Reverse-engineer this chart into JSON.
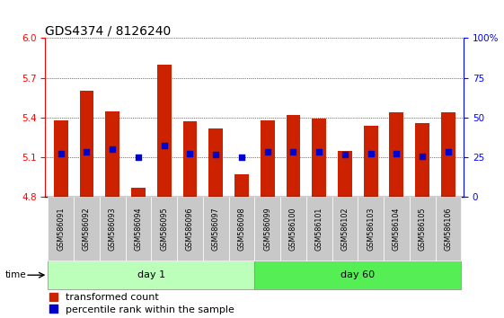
{
  "title": "GDS4374 / 8126240",
  "samples": [
    "GSM586091",
    "GSM586092",
    "GSM586093",
    "GSM586094",
    "GSM586095",
    "GSM586096",
    "GSM586097",
    "GSM586098",
    "GSM586099",
    "GSM586100",
    "GSM586101",
    "GSM586102",
    "GSM586103",
    "GSM586104",
    "GSM586105",
    "GSM586106"
  ],
  "bar_values": [
    5.38,
    5.6,
    5.45,
    4.87,
    5.8,
    5.37,
    5.32,
    4.97,
    5.38,
    5.42,
    5.39,
    5.15,
    5.34,
    5.44,
    5.36,
    5.44
  ],
  "dot_values": [
    5.13,
    5.14,
    5.16,
    5.1,
    5.19,
    5.13,
    5.12,
    5.1,
    5.14,
    5.14,
    5.14,
    5.12,
    5.13,
    5.13,
    5.11,
    5.14
  ],
  "bar_bottom": 4.8,
  "ylim": [
    4.8,
    6.0
  ],
  "yticks_left": [
    4.8,
    5.1,
    5.4,
    5.7,
    6.0
  ],
  "yticks_right": [
    0,
    25,
    50,
    75,
    100
  ],
  "bar_color": "#CC2200",
  "dot_color": "#0000CC",
  "day1_count": 8,
  "day60_count": 8,
  "day1_label": "day 1",
  "day60_label": "day 60",
  "time_label": "time",
  "legend_bar_label": "transformed count",
  "legend_dot_label": "percentile rank within the sample",
  "tick_label_bg": "#C8C8C8",
  "day1_bg": "#BBFFBB",
  "day60_bg": "#55EE55",
  "title_fontsize": 10,
  "tick_fontsize": 7.5,
  "legend_fontsize": 8
}
